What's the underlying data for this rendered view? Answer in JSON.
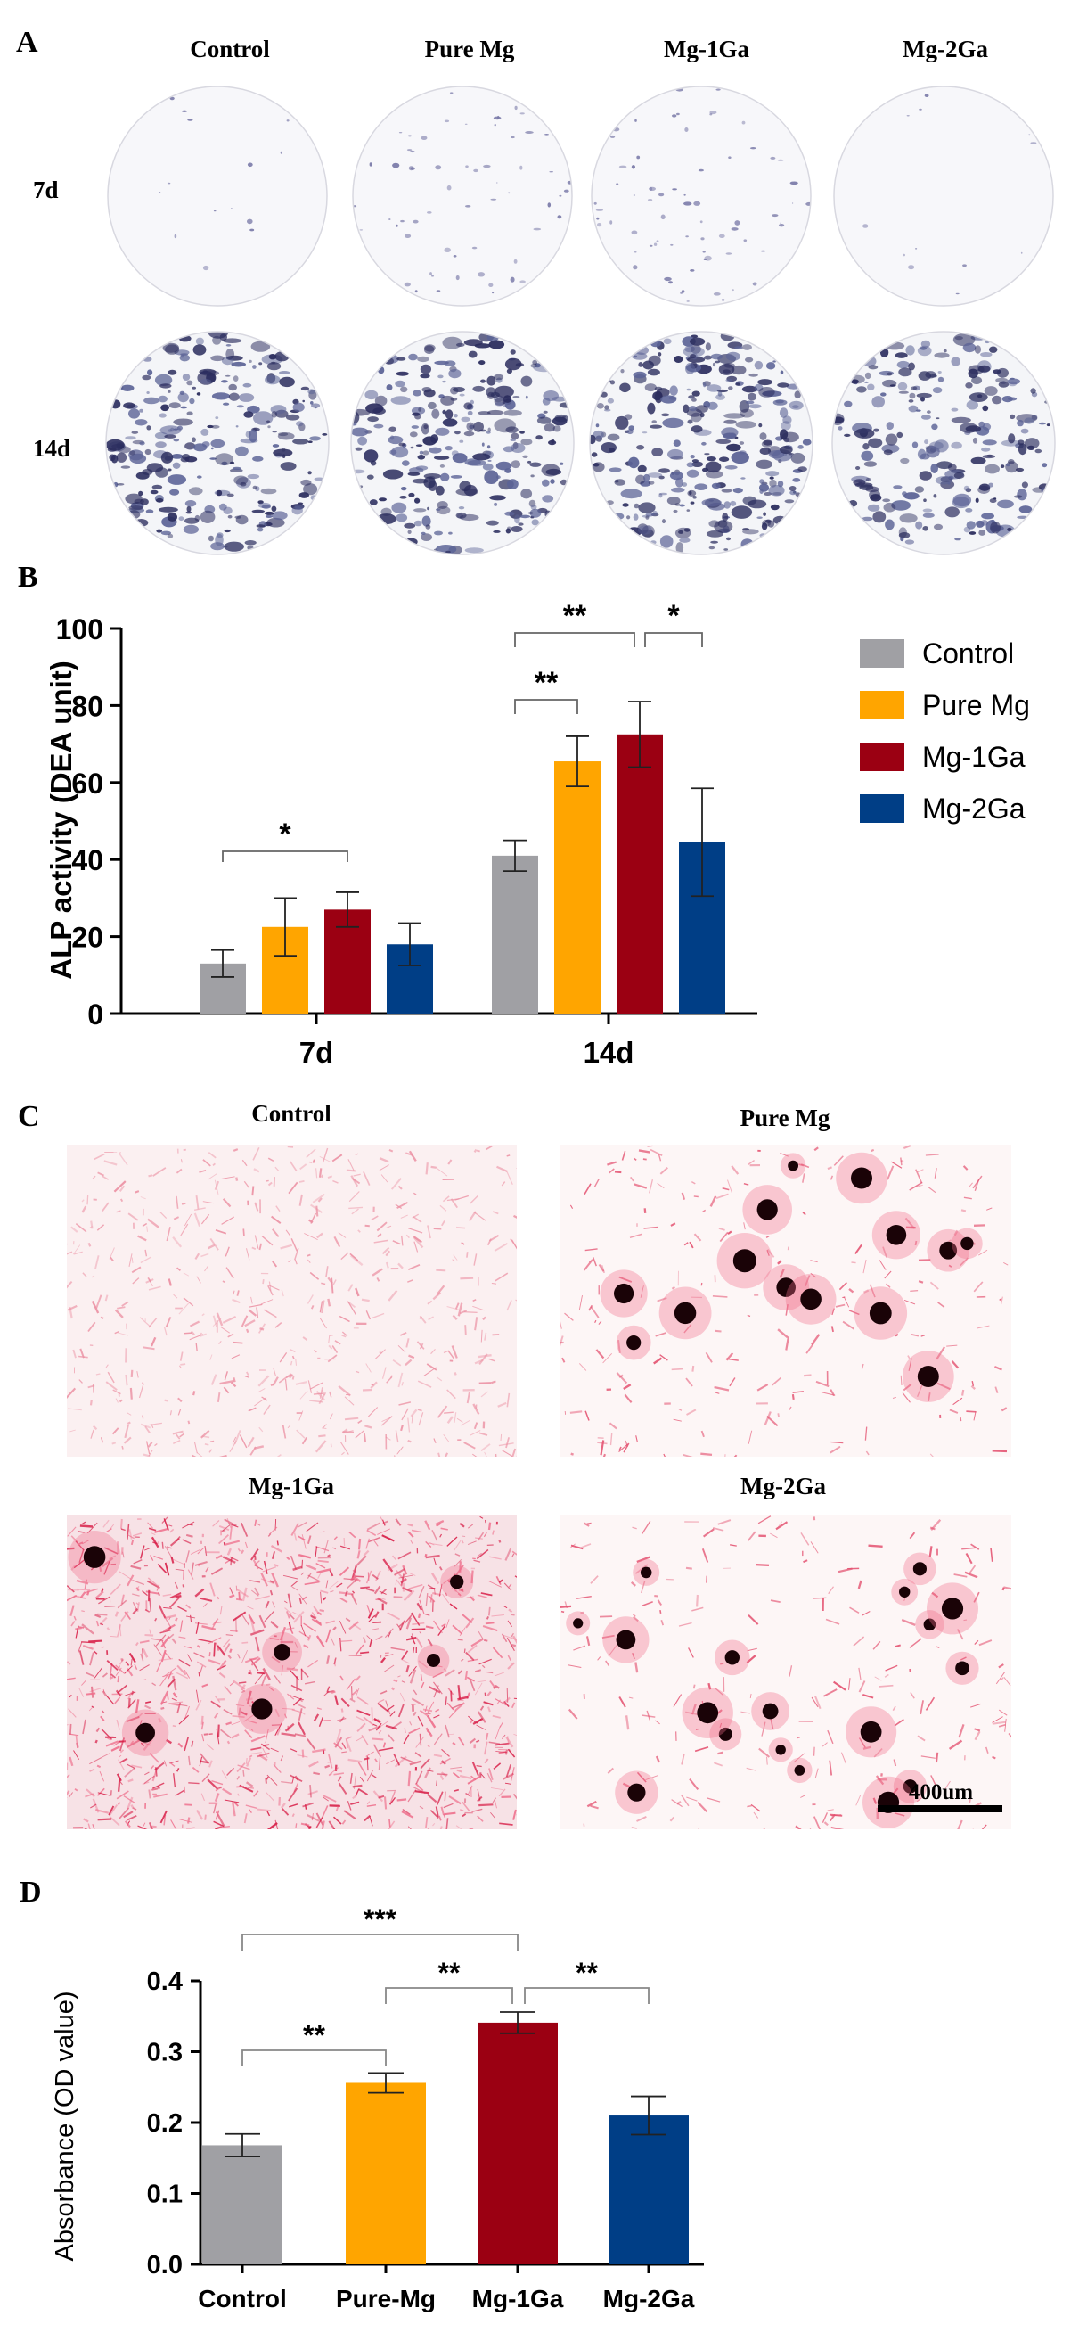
{
  "panels": {
    "a": {
      "letter": "A"
    },
    "b": {
      "letter": "B"
    },
    "c": {
      "letter": "C"
    },
    "d": {
      "letter": "D"
    }
  },
  "panel_a": {
    "columns": [
      "Control",
      "Pure Mg",
      "Mg-1Ga",
      "Mg-2Ga"
    ],
    "rows": [
      "7d",
      "14d"
    ]
  },
  "panel_c": {
    "labels": [
      "Control",
      "Pure Mg",
      "Mg-1Ga",
      "Mg-2Ga"
    ],
    "scale_bar": "400um"
  },
  "chart_data": [
    {
      "type": "bar",
      "panel": "B",
      "title": "",
      "ylabel": "ALP activity (DEA unit)",
      "xlabel": "",
      "categories": [
        "7d",
        "14d"
      ],
      "ylim": [
        0,
        100
      ],
      "yticks": [
        0,
        20,
        40,
        60,
        80,
        100
      ],
      "series": [
        {
          "name": "Control",
          "color": "#A0A0A4",
          "values": [
            13,
            41
          ],
          "errors": [
            3.5,
            4
          ]
        },
        {
          "name": "Pure Mg",
          "color": "#FFA500",
          "values": [
            22.5,
            65.5
          ],
          "errors": [
            7.5,
            6.5
          ]
        },
        {
          "name": "Mg-1Ga",
          "color": "#9B0012",
          "values": [
            27,
            72.5
          ],
          "errors": [
            4.5,
            8.5
          ]
        },
        {
          "name": "Mg-2Ga",
          "color": "#003E86",
          "values": [
            18,
            44.5
          ],
          "errors": [
            5.5,
            14
          ]
        }
      ],
      "legend_position": "right",
      "significance": [
        {
          "group": "7d",
          "from": "Control",
          "to": "Mg-1Ga",
          "label": "*"
        },
        {
          "group": "14d",
          "from": "Control",
          "to": "Pure Mg",
          "label": "**"
        },
        {
          "group": "14d",
          "from": "Control",
          "to": "Mg-1Ga",
          "label": "**"
        },
        {
          "group": "14d",
          "from": "Mg-1Ga",
          "to": "Mg-2Ga",
          "label": "*"
        }
      ]
    },
    {
      "type": "bar",
      "panel": "D",
      "title": "",
      "ylabel": "Absorbance (OD value)",
      "xlabel": "",
      "categories": [
        "Control",
        "Pure-Mg",
        "Mg-1Ga",
        "Mg-2Ga"
      ],
      "values": [
        0.168,
        0.256,
        0.341,
        0.21
      ],
      "errors": [
        0.016,
        0.014,
        0.015,
        0.027
      ],
      "colors": [
        "#A0A0A4",
        "#FFA500",
        "#9B0012",
        "#003E86"
      ],
      "ylim": [
        0,
        0.4
      ],
      "yticks": [
        "0.0",
        "0.1",
        "0.2",
        "0.3",
        "0.4"
      ],
      "significance": [
        {
          "from": "Control",
          "to": "Pure-Mg",
          "label": "**"
        },
        {
          "from": "Pure-Mg",
          "to": "Mg-1Ga",
          "label": "**"
        },
        {
          "from": "Mg-1Ga",
          "to": "Mg-2Ga",
          "label": "**"
        },
        {
          "from": "Control",
          "to": "Mg-1Ga",
          "label": "***"
        }
      ]
    }
  ]
}
